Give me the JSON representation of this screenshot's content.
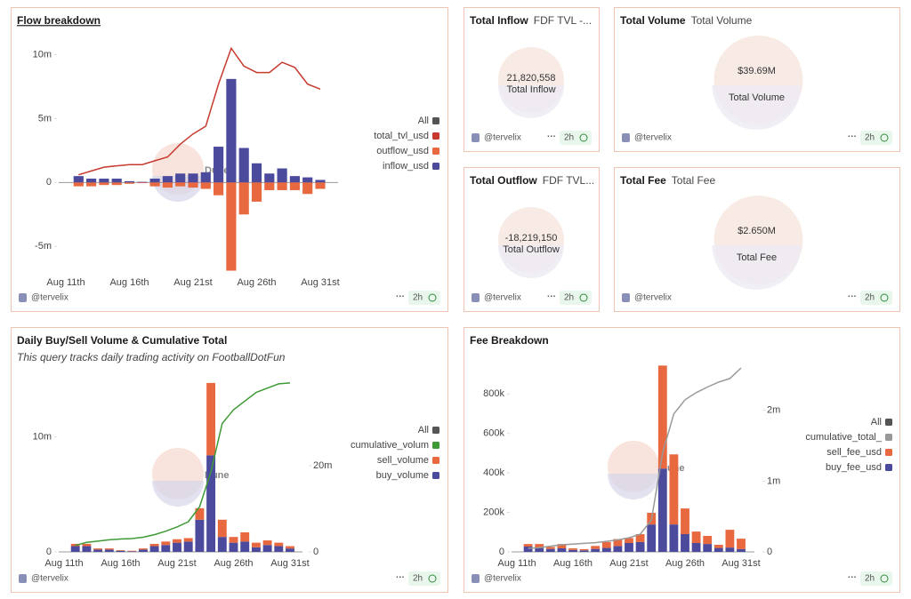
{
  "chart_data": [
    {
      "type": "bar",
      "title": "Flow breakdown",
      "categories": [
        "Aug 11th",
        null,
        null,
        null,
        null,
        "Aug 16th",
        null,
        null,
        null,
        null,
        "Aug 21st",
        null,
        null,
        null,
        null,
        "Aug 26th",
        null,
        null,
        null,
        null,
        "Aug 31st"
      ],
      "series": [
        {
          "name": "total_tvl_usd",
          "type": "line",
          "color": "#c73a2f",
          "values": [
            null,
            600000,
            900000,
            1200000,
            1300000,
            1400000,
            1400000,
            1700000,
            2000000,
            3000000,
            3800000,
            4400000,
            7700000,
            10500000,
            9100000,
            8600000,
            8600000,
            9400000,
            9000000,
            7700000,
            7300000
          ]
        },
        {
          "name": "outflow_usd",
          "color": "#e8683f",
          "values": [
            null,
            -300000,
            -300000,
            -200000,
            -200000,
            -100000,
            -50000,
            -300000,
            -400000,
            -300000,
            -400000,
            -500000,
            -1000000,
            -6900000,
            -2500000,
            -1500000,
            -600000,
            -600000,
            -600000,
            -900000,
            -500000
          ]
        },
        {
          "name": "inflow_usd",
          "color": "#4b4a9d",
          "values": [
            null,
            500000,
            300000,
            300000,
            300000,
            100000,
            50000,
            300000,
            500000,
            700000,
            700000,
            800000,
            2800000,
            8100000,
            2700000,
            1500000,
            700000,
            1100000,
            500000,
            400000,
            200000
          ]
        }
      ],
      "ylim": [
        -7000000,
        10800000
      ],
      "yticks": [
        {
          "value": -5000000,
          "label": "-5m"
        },
        0,
        {
          "value": 5000000,
          "label": "5m"
        },
        {
          "value": 10000000,
          "label": "10m"
        }
      ],
      "legend_toggle": "All",
      "legend": "right",
      "watermark": "Dune"
    },
    {
      "type": "bar",
      "title": "Daily Buy/Sell Volume & Cumulative Total",
      "subtitle": "This query tracks daily trading activity on FootballDotFun",
      "categories": [
        "Aug 11th",
        null,
        null,
        null,
        null,
        "Aug 16th",
        null,
        null,
        null,
        null,
        "Aug 21st",
        null,
        null,
        null,
        null,
        "Aug 26th",
        null,
        null,
        null,
        null,
        "Aug 31st"
      ],
      "series": [
        {
          "name": "cumulative_volum",
          "type": "line",
          "axis": "y2",
          "color": "#3e9a35",
          "values": [
            null,
            1500000,
            2200000,
            2500000,
            2800000,
            3000000,
            3100000,
            3400000,
            4000000,
            4800000,
            5800000,
            7000000,
            10500000,
            18600000,
            29800000,
            33000000,
            35000000,
            37000000,
            38000000,
            39000000,
            39200000
          ]
        },
        {
          "name": "sell_volume",
          "color": "#e8683f",
          "values": [
            null,
            200000,
            200000,
            100000,
            100000,
            50000,
            50000,
            100000,
            200000,
            300000,
            300000,
            300000,
            1000000,
            6300000,
            1500000,
            500000,
            800000,
            400000,
            400000,
            300000,
            200000
          ]
        },
        {
          "name": "buy_volume",
          "color": "#4b4a9d",
          "values": [
            null,
            500000,
            500000,
            200000,
            200000,
            100000,
            50000,
            200000,
            500000,
            600000,
            800000,
            900000,
            2800000,
            8400000,
            1300000,
            800000,
            900000,
            400000,
            600000,
            500000,
            300000
          ]
        }
      ],
      "ylim": [
        0,
        15000000
      ],
      "yticks": [
        0,
        {
          "value": 10000000,
          "label": "10m"
        }
      ],
      "y2lim": [
        0,
        40000000
      ],
      "y2ticks": [
        0,
        {
          "value": 20000000,
          "label": "20m"
        }
      ],
      "stacked": true,
      "legend_toggle": "All",
      "legend": "right",
      "watermark": "Dune"
    },
    {
      "type": "bar",
      "title": "Fee Breakdown",
      "categories": [
        "Aug 11th",
        null,
        null,
        null,
        null,
        "Aug 16th",
        null,
        null,
        null,
        null,
        "Aug 21st",
        null,
        null,
        null,
        null,
        "Aug 26th",
        null,
        null,
        null,
        null,
        "Aug 31st"
      ],
      "series": [
        {
          "name": "cumulative_total_",
          "type": "line",
          "axis": "y2",
          "color": "#999999",
          "values": [
            null,
            50000,
            60000,
            80000,
            100000,
            110000,
            120000,
            130000,
            150000,
            170000,
            200000,
            250000,
            450000,
            1400000,
            1950000,
            2150000,
            2250000,
            2330000,
            2400000,
            2450000,
            2600000
          ]
        },
        {
          "name": "sell_fee_usd",
          "color": "#e8683f",
          "values": [
            null,
            13000,
            20000,
            10000,
            22000,
            8000,
            6000,
            15000,
            30000,
            35000,
            25000,
            40000,
            59000,
            522000,
            355000,
            130000,
            58000,
            41000,
            16000,
            90000,
            53000
          ]
        },
        {
          "name": "buy_fee_usd",
          "color": "#4b4a9d",
          "values": [
            null,
            27000,
            20000,
            15000,
            18000,
            10000,
            8000,
            15000,
            20000,
            30000,
            45000,
            50000,
            139000,
            422000,
            139000,
            90000,
            45000,
            40000,
            20000,
            22000,
            14000
          ]
        }
      ],
      "ylim": [
        0,
        950000
      ],
      "yticks": [
        0,
        {
          "value": 200000,
          "label": "200k"
        },
        {
          "value": 400000,
          "label": "400k"
        },
        {
          "value": 600000,
          "label": "600k"
        },
        {
          "value": 800000,
          "label": "800k"
        }
      ],
      "y2lim": [
        0,
        2650000
      ],
      "y2ticks": [
        0,
        {
          "value": 1000000,
          "label": "1m"
        },
        {
          "value": 2000000,
          "label": "2m"
        }
      ],
      "stacked": true,
      "legend_toggle": "All",
      "legend": "right",
      "watermark": "Dune"
    }
  ],
  "counters": [
    {
      "title": "Total Inflow",
      "name": "FDF TVL -...",
      "value": "21,820,558",
      "label": "Total Inflow"
    },
    {
      "title": "Total Volume",
      "name": "Total Volume",
      "value": "$39.69M",
      "label": "Total Volume"
    },
    {
      "title": "Total Outflow",
      "name": "FDF TVL...",
      "value": "-18,219,150",
      "label": "Total Outflow"
    },
    {
      "title": "Total Fee",
      "name": "Total Fee",
      "value": "$2.650M",
      "label": "Total Fee"
    }
  ],
  "footer": {
    "author": "@tervelix",
    "age": "2h"
  }
}
